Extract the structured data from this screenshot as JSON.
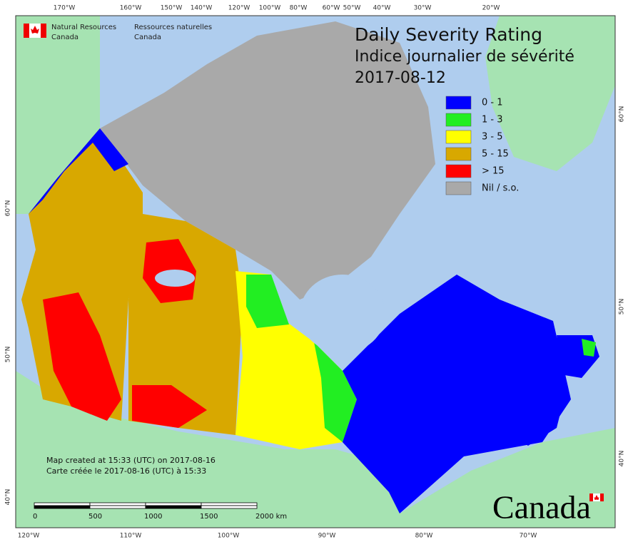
{
  "header": {
    "agency_en": [
      "Natural Resources",
      "Canada"
    ],
    "agency_fr": [
      "Ressources naturelles",
      "Canada"
    ]
  },
  "title": {
    "lines": [
      "Daily Severity Rating",
      "Indice journalier de sévérité",
      "2017-08-12"
    ]
  },
  "legend": {
    "items": [
      {
        "label": "0 - 1",
        "color": "#0000ff"
      },
      {
        "label": "1 - 3",
        "color": "#22ee22"
      },
      {
        "label": "3 - 5",
        "color": "#ffff00"
      },
      {
        "label": "5 - 15",
        "color": "#d8a800"
      },
      {
        "label": "> 15",
        "color": "#ff0000"
      },
      {
        "label": "Nil / s.o.",
        "color": "#a9a9a9"
      }
    ]
  },
  "graticule": {
    "top": [
      "170°W",
      "160°W",
      "150°W",
      "140°W",
      "120°W",
      "100°W",
      "80°W",
      "60°W",
      "50°W",
      "40°W",
      "30°W",
      "20°W"
    ],
    "bottom": [
      "120°W",
      "110°W",
      "100°W",
      "90°W",
      "80°W",
      "70°W"
    ],
    "left": [
      "60°N",
      "50°N",
      "40°N"
    ],
    "right": [
      "60°N",
      "50°N",
      "40°N"
    ]
  },
  "credit": {
    "lines": [
      "Map created at 15:33 (UTC) on 2017-08-16",
      "Carte créée le 2017-08-16 (UTC) à 15:33"
    ]
  },
  "scale_bar": {
    "labels": [
      "0",
      "500",
      "1000",
      "1500",
      "2000 km"
    ]
  },
  "wordmark": "Canada"
}
